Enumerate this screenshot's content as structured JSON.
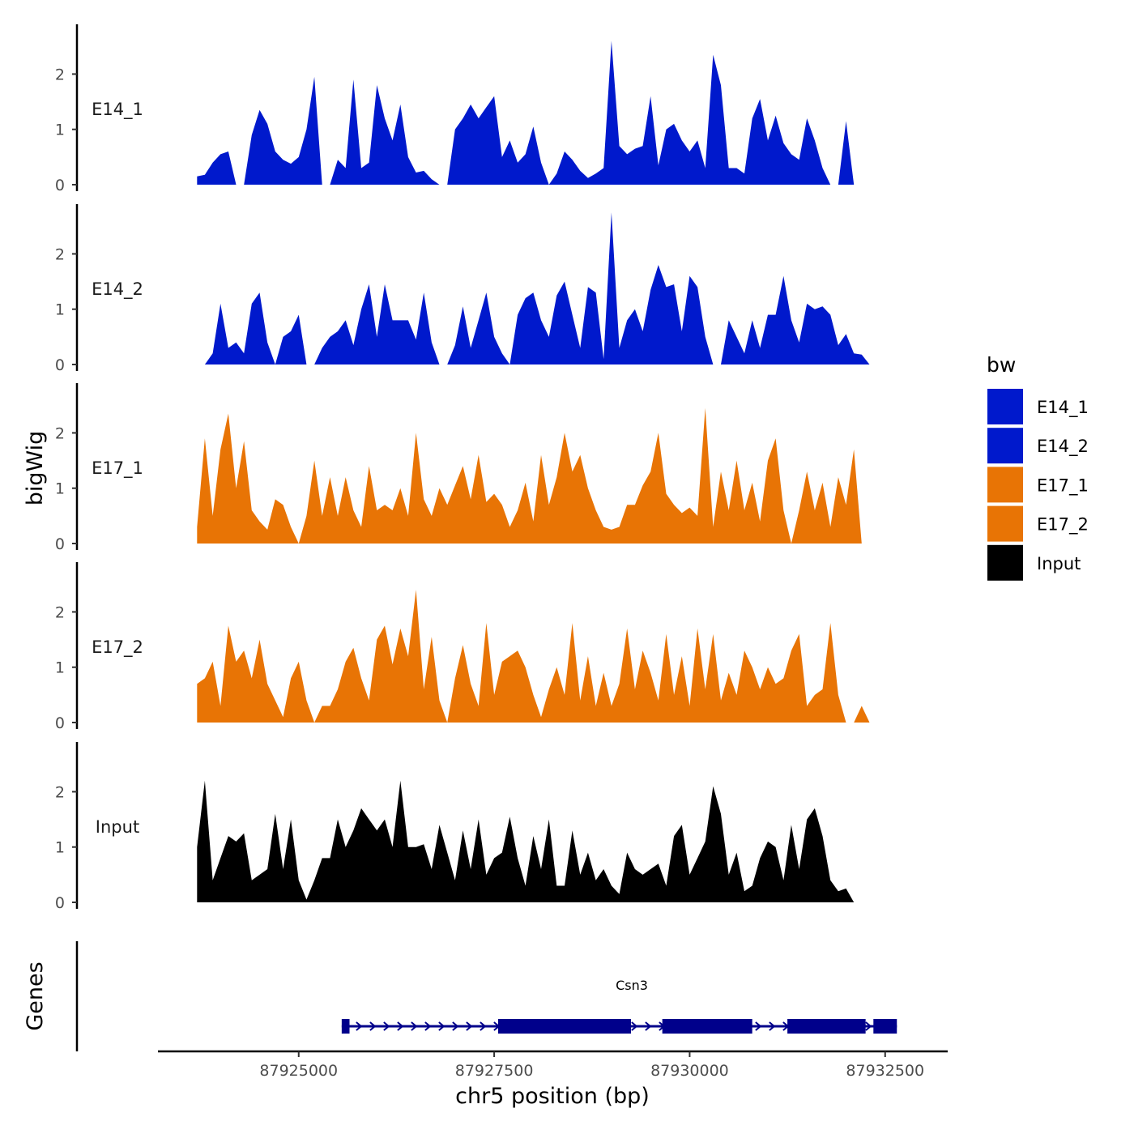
{
  "chart_data": {
    "type": "area",
    "ylabel": "bigWig",
    "xlabel": "chr5 position (bp)",
    "x_ticks": [
      87925000,
      87927500,
      87930000,
      87932500
    ],
    "x_tick_labels": [
      "87925000",
      "87927500",
      "87930000",
      "87932500"
    ],
    "xlim": [
      87923200,
      87933300
    ],
    "ylim": [
      0,
      2.9
    ],
    "y_ticks": [
      0,
      1,
      2
    ],
    "y_tick_labels": [
      "0",
      "1",
      "2"
    ],
    "legend": {
      "title": "bw",
      "placement": "right",
      "entries": [
        {
          "label": "E14_1",
          "color": "#0019CC"
        },
        {
          "label": "E14_2",
          "color": "#0019CC"
        },
        {
          "label": "E17_1",
          "color": "#E87405"
        },
        {
          "label": "E17_2",
          "color": "#E87405"
        },
        {
          "label": "Input",
          "color": "#000000"
        }
      ]
    },
    "tracks": [
      {
        "name": "E14_1",
        "color": "#0019CC",
        "x": [
          87923700,
          87923800,
          87923900,
          87924000,
          87924100,
          87924200,
          87924300,
          87924400,
          87924500,
          87924600,
          87924700,
          87924800,
          87924900,
          87925000,
          87925100,
          87925200,
          87925300,
          87925400,
          87925500,
          87925600,
          87925700,
          87925800,
          87925900,
          87926000,
          87926100,
          87926200,
          87926300,
          87926400,
          87926500,
          87926600,
          87926700,
          87926800,
          87926900,
          87927000,
          87927100,
          87927200,
          87927300,
          87927400,
          87927500,
          87927600,
          87927700,
          87927800,
          87927900,
          87928000,
          87928100,
          87928200,
          87928300,
          87928400,
          87928500,
          87928600,
          87928700,
          87928800,
          87928900,
          87929000,
          87929100,
          87929200,
          87929300,
          87929400,
          87929500,
          87929600,
          87929700,
          87929800,
          87929900,
          87930000,
          87930100,
          87930200,
          87930300,
          87930400,
          87930500,
          87930600,
          87930700,
          87930800,
          87930900,
          87931000,
          87931100,
          87931200,
          87931300,
          87931400,
          87931500,
          87931600,
          87931700,
          87931800,
          87931900,
          87932000,
          87932100,
          87932200,
          87932300,
          87932400,
          87932500,
          87932600
        ],
        "y": [
          0.15,
          0.18,
          0.4,
          0.55,
          0.6,
          0,
          0,
          0.9,
          1.35,
          1.1,
          0.6,
          0.45,
          0.38,
          0.5,
          1.0,
          1.95,
          0,
          0,
          0.45,
          0.3,
          1.9,
          0.3,
          0.4,
          1.8,
          1.2,
          0.8,
          1.45,
          0.5,
          0.22,
          0.25,
          0.1,
          0,
          0,
          1.0,
          1.2,
          1.45,
          1.2,
          1.4,
          1.6,
          0.5,
          0.8,
          0.4,
          0.55,
          1.05,
          0.4,
          0,
          0.2,
          0.6,
          0.45,
          0.25,
          0.12,
          0.2,
          0.3,
          2.6,
          0.7,
          0.55,
          0.65,
          0.7,
          1.6,
          0.35,
          1.0,
          1.1,
          0.8,
          0.6,
          0.8,
          0.3,
          2.35,
          1.8,
          0.3,
          0.3,
          0.2,
          1.2,
          1.55,
          0.8,
          1.25,
          0.75,
          0.55,
          0.45,
          1.2,
          0.8,
          0.3,
          0,
          0,
          1.15,
          0,
          0,
          0,
          0,
          0,
          0
        ]
      },
      {
        "name": "E14_2",
        "color": "#0019CC",
        "x": [
          87923700,
          87923800,
          87923900,
          87924000,
          87924100,
          87924200,
          87924300,
          87924400,
          87924500,
          87924600,
          87924700,
          87924800,
          87924900,
          87925000,
          87925100,
          87925200,
          87925300,
          87925400,
          87925500,
          87925600,
          87925700,
          87925800,
          87925900,
          87926000,
          87926100,
          87926200,
          87926300,
          87926400,
          87926500,
          87926600,
          87926700,
          87926800,
          87926900,
          87927000,
          87927100,
          87927200,
          87927300,
          87927400,
          87927500,
          87927600,
          87927700,
          87927800,
          87927900,
          87928000,
          87928100,
          87928200,
          87928300,
          87928400,
          87928500,
          87928600,
          87928700,
          87928800,
          87928900,
          87929000,
          87929100,
          87929200,
          87929300,
          87929400,
          87929500,
          87929600,
          87929700,
          87929800,
          87929900,
          87930000,
          87930100,
          87930200,
          87930300,
          87930400,
          87930500,
          87930600,
          87930700,
          87930800,
          87930900,
          87931000,
          87931100,
          87931200,
          87931300,
          87931400,
          87931500,
          87931600,
          87931700,
          87931800,
          87931900,
          87932000,
          87932100,
          87932200,
          87932300,
          87932400,
          87932500,
          87932600
        ],
        "y": [
          0,
          0,
          0.2,
          1.1,
          0.3,
          0.4,
          0.2,
          1.1,
          1.3,
          0.4,
          0,
          0.5,
          0.6,
          0.9,
          0,
          0,
          0.3,
          0.5,
          0.6,
          0.8,
          0.35,
          1.0,
          1.45,
          0.5,
          1.45,
          0.8,
          0.8,
          0.8,
          0.45,
          1.3,
          0.4,
          0,
          0,
          0.35,
          1.05,
          0.3,
          0.8,
          1.3,
          0.5,
          0.2,
          0,
          0.9,
          1.2,
          1.3,
          0.8,
          0.5,
          1.25,
          1.5,
          0.9,
          0.3,
          1.4,
          1.3,
          0.1,
          2.75,
          0.3,
          0.8,
          1.0,
          0.6,
          1.35,
          1.8,
          1.4,
          1.45,
          0.6,
          1.6,
          1.4,
          0.5,
          0,
          0,
          0.8,
          0.5,
          0.2,
          0.8,
          0.3,
          0.9,
          0.9,
          1.6,
          0.8,
          0.4,
          1.1,
          1.0,
          1.05,
          0.9,
          0.35,
          0.55,
          0.2,
          0.18,
          0,
          0,
          0,
          0
        ]
      },
      {
        "name": "E17_1",
        "color": "#E87405",
        "x": [
          87923700,
          87923800,
          87923900,
          87924000,
          87924100,
          87924200,
          87924300,
          87924400,
          87924500,
          87924600,
          87924700,
          87924800,
          87924900,
          87925000,
          87925100,
          87925200,
          87925300,
          87925400,
          87925500,
          87925600,
          87925700,
          87925800,
          87925900,
          87926000,
          87926100,
          87926200,
          87926300,
          87926400,
          87926500,
          87926600,
          87926700,
          87926800,
          87926900,
          87927000,
          87927100,
          87927200,
          87927300,
          87927400,
          87927500,
          87927600,
          87927700,
          87927800,
          87927900,
          87928000,
          87928100,
          87928200,
          87928300,
          87928400,
          87928500,
          87928600,
          87928700,
          87928800,
          87928900,
          87929000,
          87929100,
          87929200,
          87929300,
          87929400,
          87929500,
          87929600,
          87929700,
          87929800,
          87929900,
          87930000,
          87930100,
          87930200,
          87930300,
          87930400,
          87930500,
          87930600,
          87930700,
          87930800,
          87930900,
          87931000,
          87931100,
          87931200,
          87931300,
          87931400,
          87931500,
          87931600,
          87931700,
          87931800,
          87931900,
          87932000,
          87932100,
          87932200,
          87932300,
          87932400,
          87932500,
          87932600
        ],
        "y": [
          0.3,
          1.9,
          0.5,
          1.7,
          2.35,
          1.0,
          1.85,
          0.6,
          0.4,
          0.25,
          0.8,
          0.7,
          0.3,
          0,
          0.5,
          1.5,
          0.5,
          1.2,
          0.5,
          1.2,
          0.6,
          0.3,
          1.4,
          0.6,
          0.7,
          0.6,
          1.0,
          0.5,
          2.0,
          0.8,
          0.5,
          1.0,
          0.7,
          1.05,
          1.4,
          0.8,
          1.6,
          0.75,
          0.9,
          0.7,
          0.3,
          0.6,
          1.1,
          0.4,
          1.6,
          0.7,
          1.2,
          2.0,
          1.3,
          1.6,
          1.0,
          0.6,
          0.3,
          0.25,
          0.3,
          0.7,
          0.7,
          1.05,
          1.3,
          2.0,
          0.9,
          0.7,
          0.55,
          0.65,
          0.5,
          2.45,
          0.3,
          1.3,
          0.6,
          1.5,
          0.6,
          1.1,
          0.4,
          1.5,
          1.9,
          0.6,
          0,
          0.6,
          1.3,
          0.6,
          1.1,
          0.3,
          1.2,
          0.7,
          1.7,
          0,
          0,
          0,
          0,
          0
        ]
      },
      {
        "name": "E17_2",
        "color": "#E87405",
        "x": [
          87923700,
          87923800,
          87923900,
          87924000,
          87924100,
          87924200,
          87924300,
          87924400,
          87924500,
          87924600,
          87924700,
          87924800,
          87924900,
          87925000,
          87925100,
          87925200,
          87925300,
          87925400,
          87925500,
          87925600,
          87925700,
          87925800,
          87925900,
          87926000,
          87926100,
          87926200,
          87926300,
          87926400,
          87926500,
          87926600,
          87926700,
          87926800,
          87926900,
          87927000,
          87927100,
          87927200,
          87927300,
          87927400,
          87927500,
          87927600,
          87927700,
          87927800,
          87927900,
          87928000,
          87928100,
          87928200,
          87928300,
          87928400,
          87928500,
          87928600,
          87928700,
          87928800,
          87928900,
          87929000,
          87929100,
          87929200,
          87929300,
          87929400,
          87929500,
          87929600,
          87929700,
          87929800,
          87929900,
          87930000,
          87930100,
          87930200,
          87930300,
          87930400,
          87930500,
          87930600,
          87930700,
          87930800,
          87930900,
          87931000,
          87931100,
          87931200,
          87931300,
          87931400,
          87931500,
          87931600,
          87931700,
          87931800,
          87931900,
          87932000,
          87932100,
          87932200,
          87932300,
          87932400,
          87932500,
          87932600
        ],
        "y": [
          0.7,
          0.8,
          1.1,
          0.3,
          1.75,
          1.1,
          1.3,
          0.8,
          1.5,
          0.7,
          0.4,
          0.1,
          0.8,
          1.1,
          0.4,
          0,
          0.3,
          0.3,
          0.6,
          1.1,
          1.35,
          0.8,
          0.4,
          1.5,
          1.75,
          1.05,
          1.7,
          1.2,
          2.4,
          0.6,
          1.55,
          0.4,
          0,
          0.8,
          1.4,
          0.7,
          0.3,
          1.8,
          0.5,
          1.1,
          1.2,
          1.3,
          1.0,
          0.5,
          0.1,
          0.6,
          1.0,
          0.5,
          1.8,
          0.4,
          1.2,
          0.3,
          0.9,
          0.3,
          0.7,
          1.7,
          0.6,
          1.3,
          0.9,
          0.4,
          1.6,
          0.5,
          1.2,
          0.3,
          1.7,
          0.6,
          1.6,
          0.4,
          0.9,
          0.5,
          1.3,
          1.0,
          0.6,
          1.0,
          0.7,
          0.8,
          1.3,
          1.6,
          0.3,
          0.5,
          0.6,
          1.8,
          0.5,
          0,
          0,
          0.3,
          0,
          0,
          0,
          0
        ]
      },
      {
        "name": "Input",
        "color": "#000000",
        "x": [
          87923700,
          87923800,
          87923900,
          87924000,
          87924100,
          87924200,
          87924300,
          87924400,
          87924500,
          87924600,
          87924700,
          87924800,
          87924900,
          87925000,
          87925100,
          87925200,
          87925300,
          87925400,
          87925500,
          87925600,
          87925700,
          87925800,
          87925900,
          87926000,
          87926100,
          87926200,
          87926300,
          87926400,
          87926500,
          87926600,
          87926700,
          87926800,
          87926900,
          87927000,
          87927100,
          87927200,
          87927300,
          87927400,
          87927500,
          87927600,
          87927700,
          87927800,
          87927900,
          87928000,
          87928100,
          87928200,
          87928300,
          87928400,
          87928500,
          87928600,
          87928700,
          87928800,
          87928900,
          87929000,
          87929100,
          87929200,
          87929300,
          87929400,
          87929500,
          87929600,
          87929700,
          87929800,
          87929900,
          87930000,
          87930100,
          87930200,
          87930300,
          87930400,
          87930500,
          87930600,
          87930700,
          87930800,
          87930900,
          87931000,
          87931100,
          87931200,
          87931300,
          87931400,
          87931500,
          87931600,
          87931700,
          87931800,
          87931900,
          87932000,
          87932100,
          87932200,
          87932300,
          87932400,
          87932500,
          87932600
        ],
        "y": [
          1.0,
          2.2,
          0.4,
          0.8,
          1.2,
          1.1,
          1.25,
          0.4,
          0.5,
          0.6,
          1.6,
          0.6,
          1.5,
          0.4,
          0.05,
          0.4,
          0.8,
          0.8,
          1.5,
          1.0,
          1.3,
          1.7,
          1.5,
          1.3,
          1.5,
          1.0,
          2.2,
          1.0,
          1.0,
          1.05,
          0.6,
          1.4,
          0.9,
          0.4,
          1.3,
          0.6,
          1.5,
          0.5,
          0.8,
          0.9,
          1.55,
          0.8,
          0.3,
          1.2,
          0.6,
          1.5,
          0.3,
          0.3,
          1.3,
          0.5,
          0.9,
          0.4,
          0.6,
          0.3,
          0.15,
          0.9,
          0.6,
          0.5,
          0.6,
          0.7,
          0.3,
          1.2,
          1.4,
          0.5,
          0.8,
          1.1,
          2.1,
          1.6,
          0.5,
          0.9,
          0.2,
          0.3,
          0.8,
          1.1,
          1.0,
          0.4,
          1.4,
          0.6,
          1.5,
          1.7,
          1.2,
          0.4,
          0.2,
          0.25,
          0,
          0,
          0,
          0,
          0,
          0
        ]
      }
    ],
    "genes": {
      "title": "Genes",
      "name": "Csn3",
      "color": "#00008B",
      "start": 87925550,
      "end": 87932650,
      "strand": "+",
      "exons": [
        [
          87925550,
          87925650
        ],
        [
          87927550,
          87929250
        ],
        [
          87929650,
          87930800
        ],
        [
          87931250,
          87932250
        ],
        [
          87932350,
          87932650
        ]
      ]
    }
  }
}
